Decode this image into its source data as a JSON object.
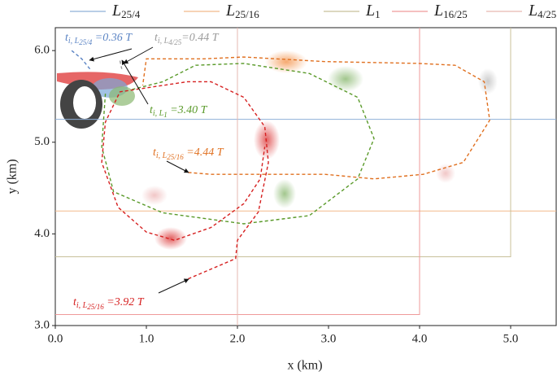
{
  "chart_data": {
    "type": "line",
    "xlabel": "x (km)",
    "ylabel": "y (km)",
    "xlim": [
      0,
      5.5
    ],
    "ylim": [
      3.0,
      6.25
    ],
    "xticks": [
      {
        "value": 0,
        "label": "0.0"
      },
      {
        "value": 1,
        "label": "1.0"
      },
      {
        "value": 2,
        "label": "2.0"
      },
      {
        "value": 3,
        "label": "3.0"
      },
      {
        "value": 4,
        "label": "4.0"
      },
      {
        "value": 5,
        "label": "5.0"
      }
    ],
    "yticks": [
      {
        "value": 3,
        "label": "3.0"
      },
      {
        "value": 4,
        "label": "4.0"
      },
      {
        "value": 5,
        "label": "5.0"
      },
      {
        "value": 6,
        "label": "6.0"
      }
    ],
    "series": [
      {
        "name": "L",
        "subscript": "25/4",
        "color": "#8fb0d8",
        "x": [
          0,
          5.5
        ],
        "y": [
          5.25,
          5.25
        ]
      },
      {
        "name": "L",
        "subscript": "25/16",
        "color": "#f2b98a",
        "x": [
          0,
          5.5
        ],
        "y": [
          4.25,
          4.25
        ]
      },
      {
        "name": "L",
        "subscript": "1",
        "color": "#c8c09a",
        "x": [
          0,
          5.0,
          5.0
        ],
        "y": [
          3.75,
          3.75,
          6.25
        ]
      },
      {
        "name": "L",
        "subscript": "16/25",
        "color": "#ef9a9a",
        "x": [
          0,
          4.0,
          4.0
        ],
        "y": [
          3.12,
          3.12,
          6.25
        ]
      },
      {
        "name": "L",
        "subscript": "4/25",
        "color": "#e6b8b0",
        "x": [
          2.0,
          2.0
        ],
        "y": [
          3.0,
          6.25
        ]
      }
    ],
    "trajectories": [
      {
        "color": "#5b84c4",
        "x": [
          0.18,
          0.29,
          0.38
        ],
        "y": [
          6.0,
          5.91,
          5.8
        ]
      },
      {
        "color": "#999999",
        "x": [
          0.71,
          0.73
        ],
        "y": [
          5.89,
          5.8
        ]
      },
      {
        "color": "#5a9a2a",
        "x": [
          0.55,
          0.51,
          0.64,
          1.18,
          2.07,
          2.79,
          3.32,
          3.5,
          3.32,
          2.79,
          2.07,
          1.54,
          1.18,
          0.82
        ],
        "y": [
          5.53,
          4.95,
          4.46,
          4.23,
          4.11,
          4.2,
          4.6,
          5.04,
          5.49,
          5.75,
          5.86,
          5.84,
          5.66,
          5.57
        ]
      },
      {
        "color": "#e07020",
        "x": [
          1.46,
          1.71,
          2.96,
          3.5,
          4.04,
          4.48,
          4.77,
          4.71,
          4.39,
          3.99,
          2.96,
          2.07,
          1.63,
          1.0,
          0.96
        ],
        "y": [
          4.67,
          4.65,
          4.65,
          4.6,
          4.65,
          4.78,
          5.24,
          5.66,
          5.84,
          5.86,
          5.88,
          5.93,
          5.91,
          5.91,
          5.62
        ]
      },
      {
        "color": "#d62020",
        "x": [
          1.46,
          1.98,
          2.0,
          2.23,
          2.34,
          2.3,
          2.07,
          1.71,
          1.45,
          1.18,
          0.71,
          0.55,
          0.51,
          0.69,
          1.0,
          1.31,
          1.71,
          2.07,
          2.25,
          2.3
        ],
        "y": [
          3.51,
          3.73,
          3.93,
          4.24,
          4.78,
          5.17,
          5.49,
          5.66,
          5.66,
          5.62,
          5.55,
          5.22,
          4.78,
          4.29,
          4.02,
          3.93,
          4.07,
          4.33,
          4.6,
          4.95
        ]
      }
    ],
    "annotations": [
      {
        "t": "t",
        "sub": "i, L",
        "subsub": "25/4",
        "text": " =0.36 T",
        "color": "#5b84c4"
      },
      {
        "t": "t",
        "sub": "i, L",
        "subsub": "4/25",
        "text": "=0.44 T",
        "color": "#9a9a9a"
      },
      {
        "t": "t",
        "sub": "i, L",
        "subsub": "1",
        "text": " =3.40 T",
        "color": "#5a9a2a"
      },
      {
        "t": "t",
        "sub": "i, L",
        "subsub": "25/16",
        "text": " =4.44 T",
        "color": "#e07020"
      },
      {
        "t": "t",
        "sub": "i, L",
        "subsub": "25/16",
        "text": " =3.92 T",
        "color": "#d62020"
      }
    ]
  }
}
